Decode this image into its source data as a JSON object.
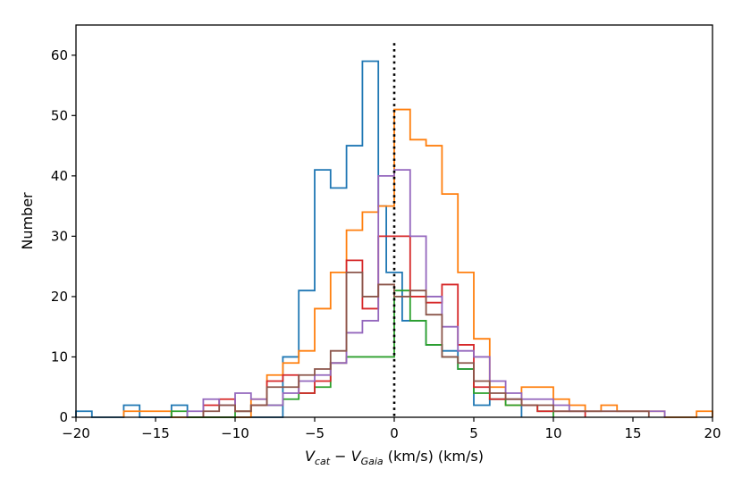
{
  "chart_data": {
    "type": "histogram",
    "title": "",
    "xlabel_main": "V",
    "xlabel_sub_cat": "cat",
    "xlabel_minus": " − ",
    "xlabel_sub_gaia": "Gaia",
    "xlabel_suffix": " (km/s) (km/s)",
    "ylabel": "Number",
    "xlim": [
      -20,
      20
    ],
    "ylim": [
      0,
      65
    ],
    "xticks": [
      -20,
      -15,
      -10,
      -5,
      0,
      5,
      10,
      15,
      20
    ],
    "xtick_labels": [
      "−20",
      "−15",
      "−10",
      "−5",
      "0",
      "5",
      "10",
      "15",
      "20"
    ],
    "yticks": [
      0,
      10,
      20,
      30,
      40,
      50,
      60
    ],
    "ytick_labels": [
      "0",
      "10",
      "20",
      "30",
      "40",
      "50",
      "60"
    ],
    "vline": {
      "x": 0,
      "ymax": 62,
      "style": "dotted",
      "color": "#000000"
    },
    "series": [
      {
        "name": "blue",
        "color": "#1f77b4",
        "edges": [
          -20,
          -19,
          -17,
          -16,
          -14,
          -13,
          -7,
          -6,
          -5,
          -4,
          -3,
          -2,
          -1,
          -0.5,
          0,
          0.5,
          2,
          3,
          4,
          5,
          6,
          8
        ],
        "counts": [
          1,
          0,
          2,
          0,
          2,
          0,
          10,
          21,
          41,
          38,
          45,
          59,
          35,
          24,
          24,
          16,
          12,
          11,
          8,
          2,
          3
        ]
      },
      {
        "name": "orange",
        "color": "#ff7f0e",
        "edges": [
          -17,
          -14,
          -9,
          -8,
          -7,
          -6,
          -5,
          -4,
          -3,
          -2,
          -1,
          0,
          1,
          2,
          3,
          4,
          5,
          6,
          7,
          8,
          10,
          11,
          12,
          13,
          14,
          15,
          17,
          19,
          20
        ],
        "counts": [
          1,
          0,
          3,
          7,
          9,
          11,
          18,
          24,
          31,
          34,
          35,
          51,
          46,
          45,
          37,
          24,
          13,
          5,
          2,
          5,
          3,
          2,
          1,
          2,
          1,
          1,
          0,
          1
        ]
      },
      {
        "name": "green",
        "color": "#2ca02c",
        "edges": [
          -14,
          -13,
          -10,
          -9,
          -8,
          -7,
          -6,
          -5,
          -4,
          -3,
          -2,
          0,
          1,
          2,
          3,
          4,
          5,
          6,
          7,
          8,
          9,
          10
        ],
        "counts": [
          1,
          0,
          1,
          2,
          2,
          3,
          4,
          5,
          9,
          10,
          10,
          21,
          16,
          12,
          10,
          8,
          4,
          3,
          2,
          2,
          1
        ]
      },
      {
        "name": "red",
        "color": "#d62728",
        "edges": [
          -12,
          -11,
          -10,
          -9,
          -8,
          -7,
          -6,
          -5,
          -4,
          -3,
          -2,
          -1,
          0,
          1,
          2,
          3,
          4,
          5,
          6,
          7,
          8,
          9,
          10,
          12
        ],
        "counts": [
          2,
          3,
          1,
          2,
          6,
          7,
          4,
          6,
          9,
          26,
          18,
          30,
          30,
          20,
          19,
          22,
          12,
          5,
          3,
          3,
          2,
          1,
          1
        ]
      },
      {
        "name": "purple",
        "color": "#9467bd",
        "edges": [
          -13,
          -12,
          -11,
          -10,
          -9,
          -8,
          -7,
          -6,
          -5,
          -4,
          -3,
          -2,
          -1,
          0,
          1,
          2,
          3,
          4,
          5,
          6,
          7,
          8,
          9,
          10,
          11,
          12,
          13,
          15,
          17
        ],
        "counts": [
          1,
          3,
          2,
          4,
          3,
          2,
          4,
          6,
          7,
          9,
          14,
          16,
          40,
          41,
          30,
          20,
          15,
          11,
          10,
          6,
          4,
          3,
          3,
          2,
          1,
          1,
          1,
          1
        ]
      },
      {
        "name": "brown",
        "color": "#8c564b",
        "edges": [
          -12,
          -11,
          -10,
          -9,
          -8,
          -7,
          -6,
          -5,
          -4,
          -3,
          -2,
          -1,
          0,
          1,
          2,
          3,
          4,
          5,
          6,
          7,
          8,
          10,
          11,
          12,
          16
        ],
        "counts": [
          1,
          2,
          1,
          2,
          5,
          5,
          7,
          8,
          11,
          24,
          20,
          22,
          20,
          21,
          17,
          10,
          9,
          6,
          4,
          3,
          2,
          1,
          1,
          1
        ]
      }
    ]
  }
}
